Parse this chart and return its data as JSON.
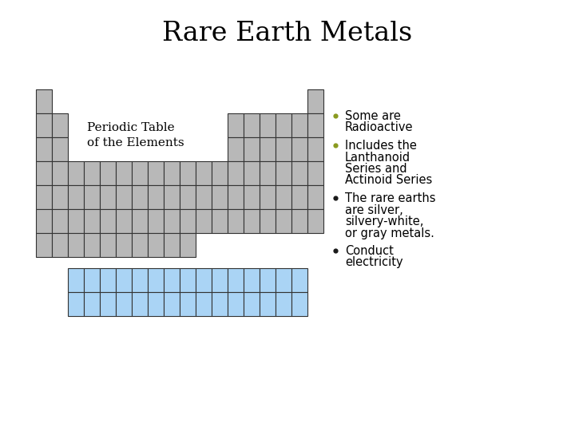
{
  "title": "Rare Earth Metals",
  "title_fontsize": 24,
  "title_font": "serif",
  "bg_color": "#ffffff",
  "gray_color": "#b8b8b8",
  "blue_color": "#aad4f5",
  "edge_color": "#333333",
  "table_label_line1": "Periodic Table",
  "table_label_line2": "of the Elements",
  "table_label_fontsize": 11,
  "table_label_font": "serif",
  "bullet_items": [
    {
      "text": "Some are\nRadioactive",
      "bullet_color": "#8a9a20"
    },
    {
      "text": "Includes the\nLanthanoid\nSeries and\nActinoid Series",
      "bullet_color": "#8a9a20"
    },
    {
      "text": "The rare earths\nare silver,\nsilvery-white,\nor gray metals.",
      "bullet_color": "#1a1a1a"
    },
    {
      "text": "Conduct\nelectricity",
      "bullet_color": "#1a1a1a"
    }
  ],
  "bullet_fontsize": 10.5,
  "fig_width": 7.2,
  "fig_height": 5.4,
  "dpi": 100
}
